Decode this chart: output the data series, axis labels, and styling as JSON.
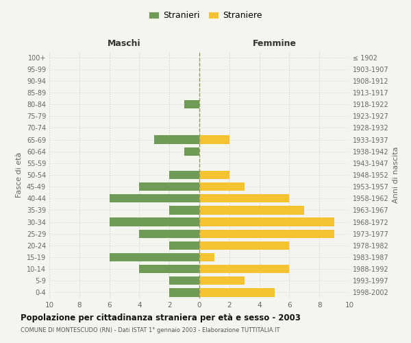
{
  "age_groups": [
    "0-4",
    "5-9",
    "10-14",
    "15-19",
    "20-24",
    "25-29",
    "30-34",
    "35-39",
    "40-44",
    "45-49",
    "50-54",
    "55-59",
    "60-64",
    "65-69",
    "70-74",
    "75-79",
    "80-84",
    "85-89",
    "90-94",
    "95-99",
    "100+"
  ],
  "birth_years": [
    "1998-2002",
    "1993-1997",
    "1988-1992",
    "1983-1987",
    "1978-1982",
    "1973-1977",
    "1968-1972",
    "1963-1967",
    "1958-1962",
    "1953-1957",
    "1948-1952",
    "1943-1947",
    "1938-1942",
    "1933-1937",
    "1928-1932",
    "1923-1927",
    "1918-1922",
    "1913-1917",
    "1908-1912",
    "1903-1907",
    "≤ 1902"
  ],
  "maschi": [
    2,
    2,
    4,
    6,
    2,
    4,
    6,
    2,
    6,
    4,
    2,
    0,
    1,
    3,
    0,
    0,
    1,
    0,
    0,
    0,
    0
  ],
  "femmine": [
    5,
    3,
    6,
    1,
    6,
    9,
    9,
    7,
    6,
    3,
    2,
    0,
    0,
    2,
    0,
    0,
    0,
    0,
    0,
    0,
    0
  ],
  "male_color": "#6f9b57",
  "female_color": "#f5c232",
  "legend_male": "Stranieri",
  "legend_female": "Straniere",
  "title_maschi": "Maschi",
  "title_femmine": "Femmine",
  "ylabel_left": "Fasce di età",
  "ylabel_right": "Anni di nascita",
  "main_title": "Popolazione per cittadinanza straniera per età e sesso - 2003",
  "subtitle": "COMUNE DI MONTESCUDO (RN) - Dati ISTAT 1° gennaio 2003 - Elaborazione TUTTITALIA.IT",
  "bg_color": "#f5f5f0",
  "grid_color": "#cccccc",
  "dashed_line_color": "#999966"
}
